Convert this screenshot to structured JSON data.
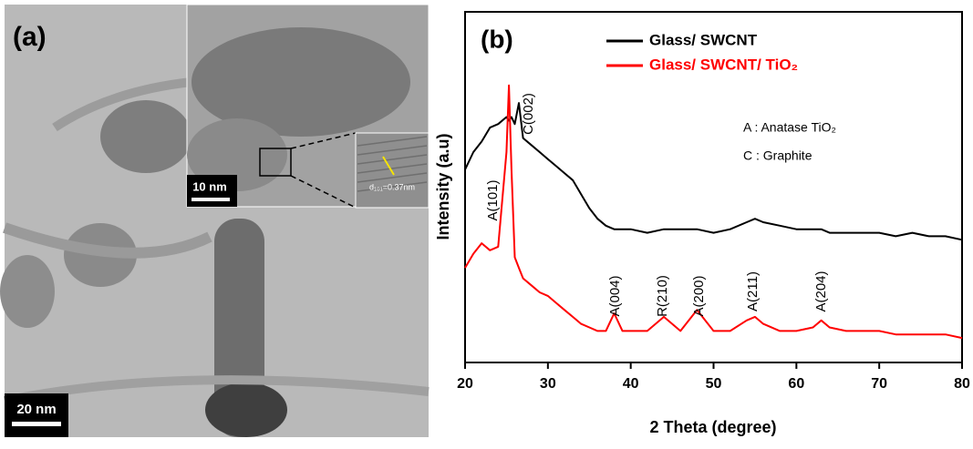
{
  "panel_a": {
    "label": "(a)",
    "scale_bar": "20 nm",
    "inset_scale_bar": "10 nm",
    "lattice_label": "d₁₀₁=0.37nm"
  },
  "chart_data": {
    "type": "line",
    "panel_label": "(b)",
    "x_label": "2 Theta (degree)",
    "y_label": "Intensity (a.u)",
    "xlim": [
      20,
      80
    ],
    "xticks": [
      20,
      30,
      40,
      50,
      60,
      70,
      80
    ],
    "ylim": [
      0,
      100
    ],
    "x": [
      20,
      21,
      22,
      23,
      24,
      25,
      25.3,
      25.6,
      26,
      26.5,
      27,
      28,
      29,
      30,
      31,
      32,
      33,
      34,
      35,
      36,
      37,
      38,
      39,
      40,
      42,
      44,
      46,
      48,
      50,
      52,
      54,
      55,
      56,
      58,
      60,
      62,
      63,
      64,
      66,
      68,
      70,
      72,
      74,
      76,
      78,
      80
    ],
    "series": [
      {
        "name": "Glass/ SWCNT",
        "color": "#000000",
        "values": [
          55,
          60,
          63,
          67,
          68,
          70,
          69,
          70,
          68,
          74,
          64,
          62,
          60,
          58,
          56,
          54,
          52,
          48,
          44,
          41,
          39,
          38,
          38,
          38,
          37,
          38,
          38,
          38,
          37,
          38,
          40,
          41,
          40,
          39,
          38,
          38,
          38,
          37,
          37,
          37,
          37,
          36,
          37,
          36,
          36,
          35
        ]
      },
      {
        "name": "Glass/ SWCNT/ TiO₂",
        "color": "#ff0000",
        "values": [
          27,
          31,
          34,
          32,
          33,
          60,
          79,
          55,
          30,
          27,
          24,
          22,
          20,
          19,
          17,
          15,
          13,
          11,
          10,
          9,
          9,
          14,
          9,
          9,
          9,
          13,
          9,
          15,
          9,
          9,
          12,
          13,
          11,
          9,
          9,
          10,
          12,
          10,
          9,
          9,
          9,
          8,
          8,
          8,
          8,
          7
        ]
      }
    ],
    "annotations": [
      "A(101)",
      "C(002)",
      "A(004)",
      "R(210)",
      "A(200)",
      "A(211)",
      "A(204)"
    ],
    "notes": [
      "A : Anatase TiO₂",
      "C : Graphite"
    ]
  }
}
